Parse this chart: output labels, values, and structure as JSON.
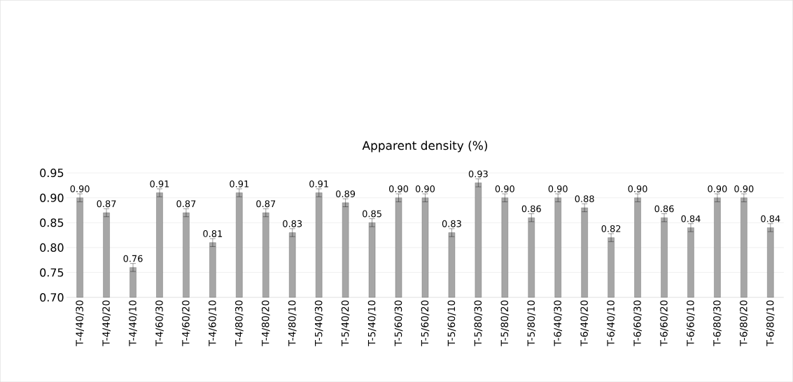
{
  "chart_data": {
    "type": "bar",
    "title": "Apparent density (%)",
    "categories": [
      "T-4/40/30",
      "T-4/40/20",
      "T-4/40/10",
      "T-4/60/30",
      "T-4/60/20",
      "T-4/60/10",
      "T-4/80/30",
      "T-4/80/20",
      "T-4/80/10",
      "T-5/40/30",
      "T-5/40/20",
      "T-5/40/10",
      "T-5/60/30",
      "T-5/60/20",
      "T-5/60/10",
      "T-5/80/30",
      "T-5/80/20",
      "T-5/80/10",
      "T-6/40/30",
      "T-6/40/20",
      "T-6/40/10",
      "T-6/60/30",
      "T-6/60/20",
      "T-6/60/10",
      "T-6/80/30",
      "T-6/80/20",
      "T-6/80/10"
    ],
    "values": [
      0.9,
      0.87,
      0.76,
      0.91,
      0.87,
      0.81,
      0.91,
      0.87,
      0.83,
      0.91,
      0.89,
      0.85,
      0.9,
      0.9,
      0.83,
      0.93,
      0.9,
      0.86,
      0.9,
      0.88,
      0.82,
      0.9,
      0.86,
      0.84,
      0.9,
      0.9,
      0.84
    ],
    "value_labels": [
      "0.90",
      "0.87",
      "0.76",
      "0.91",
      "0.87",
      "0.81",
      "0.91",
      "0.87",
      "0.83",
      "0.91",
      "0.89",
      "0.85",
      "0.90",
      "0.90",
      "0.83",
      "0.93",
      "0.90",
      "0.86",
      "0.90",
      "0.88",
      "0.82",
      "0.90",
      "0.86",
      "0.84",
      "0.90",
      "0.90",
      "0.84"
    ],
    "errors": [
      0.008,
      0.008,
      0.008,
      0.008,
      0.008,
      0.008,
      0.008,
      0.008,
      0.008,
      0.008,
      0.008,
      0.008,
      0.008,
      0.008,
      0.008,
      0.008,
      0.008,
      0.008,
      0.008,
      0.008,
      0.008,
      0.008,
      0.008,
      0.008,
      0.008,
      0.008,
      0.008
    ],
    "color": "#a6a6a6",
    "ylim": [
      0.7,
      0.95
    ],
    "yticks": [
      {
        "value": 0.7,
        "label": "0.70"
      },
      {
        "value": 0.75,
        "label": "0.75"
      },
      {
        "value": 0.8,
        "label": "0.80"
      },
      {
        "value": 0.85,
        "label": "0.85"
      },
      {
        "value": 0.9,
        "label": "0.90"
      },
      {
        "value": 0.95,
        "label": "0.95"
      }
    ],
    "grid": "y"
  }
}
